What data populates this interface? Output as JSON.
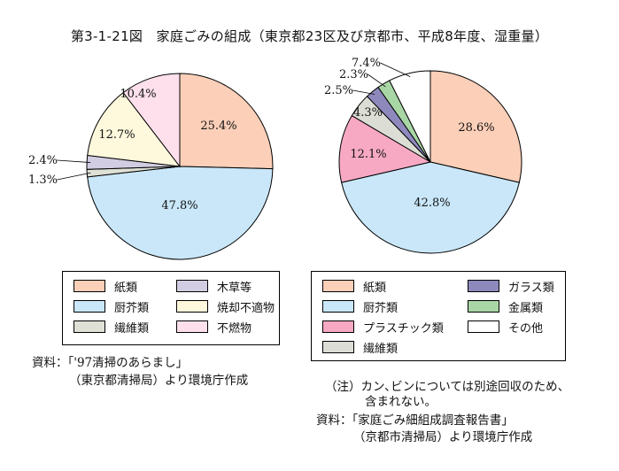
{
  "title": "第3-1-21図　家庭ごみの組成（東京都23区及び京都市、平成8年度、湿重量）",
  "chart_data": [
    {
      "type": "pie",
      "name": "東京都23区",
      "slices": [
        {
          "label": "紙類",
          "value": 25.4,
          "text": "25.4%",
          "color": "#fbcfb8"
        },
        {
          "label": "厨芥類",
          "value": 47.8,
          "text": "47.8%",
          "color": "#c9e7f9"
        },
        {
          "label": "繊維類",
          "value": 1.3,
          "text": "1.3%",
          "color": "#dfe0d6"
        },
        {
          "label": "木草等",
          "value": 2.4,
          "text": "2.4%",
          "color": "#d2cde2"
        },
        {
          "label": "焼却不適物",
          "value": 12.7,
          "text": "12.7%",
          "color": "#fef8dc"
        },
        {
          "label": "不燃物",
          "value": 10.4,
          "text": "10.4%",
          "color": "#fde0ec"
        }
      ]
    },
    {
      "type": "pie",
      "name": "京都市",
      "slices": [
        {
          "label": "紙類",
          "value": 28.6,
          "text": "28.6%",
          "color": "#fbcfb8"
        },
        {
          "label": "厨芥類",
          "value": 42.8,
          "text": "42.8%",
          "color": "#c9e7f9"
        },
        {
          "label": "プラスチック類",
          "value": 12.1,
          "text": "12.1%",
          "color": "#f7a9c4"
        },
        {
          "label": "繊維類",
          "value": 4.3,
          "text": "4.3%",
          "color": "#dcded6"
        },
        {
          "label": "ガラス類",
          "value": 2.5,
          "text": "2.5%",
          "color": "#8e89bd"
        },
        {
          "label": "金属類",
          "value": 2.3,
          "text": "2.3%",
          "color": "#a8d6a5"
        },
        {
          "label": "その他",
          "value": 7.4,
          "text": "7.4%",
          "color": "#ffffff"
        }
      ]
    }
  ],
  "legend_left": [
    {
      "label": "紙類",
      "color": "#fbcfb8"
    },
    {
      "label": "厨芥類",
      "color": "#c9e7f9"
    },
    {
      "label": "繊維類",
      "color": "#dfe0d6"
    },
    {
      "label": "木草等",
      "color": "#d2cde2"
    },
    {
      "label": "焼却不適物",
      "color": "#fef8dc"
    },
    {
      "label": "不燃物",
      "color": "#fde0ec"
    }
  ],
  "legend_right": [
    {
      "label": "紙類",
      "color": "#fbcfb8"
    },
    {
      "label": "厨芥類",
      "color": "#c9e7f9"
    },
    {
      "label": "プラスチック類",
      "color": "#f7a9c4"
    },
    {
      "label": "繊維類",
      "color": "#dcded6"
    },
    {
      "label": "ガラス類",
      "color": "#8e89bd"
    },
    {
      "label": "金属類",
      "color": "#a8d6a5"
    },
    {
      "label": "その他",
      "color": "#ffffff"
    }
  ],
  "notes": {
    "left_source_1": "資料：「'97清掃のあらまし」",
    "left_source_2": "（東京都清掃局）より環境庁作成",
    "right_note_1": "（注）カン､ビンについては別途回収のため、",
    "right_note_2": "含まれない。",
    "right_source_1": "資料：「家庭ごみ細組成調査報告書」",
    "right_source_2": "（京都市清掃局）より環境庁作成"
  }
}
